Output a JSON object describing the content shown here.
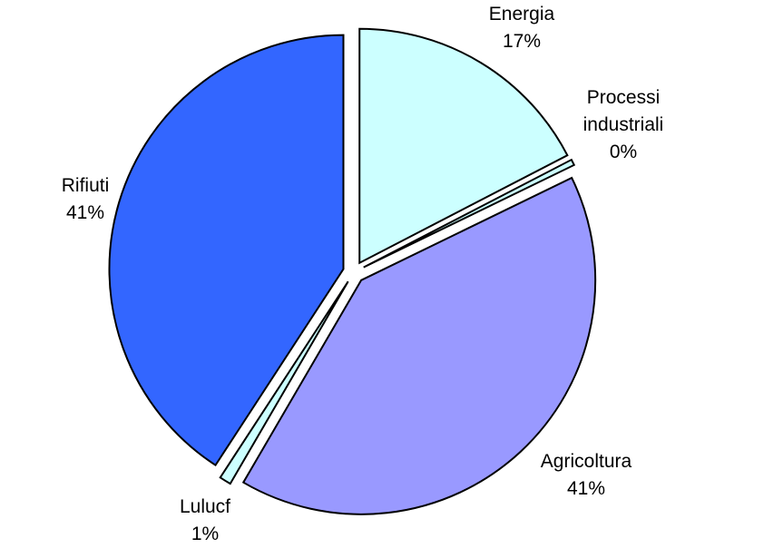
{
  "chart_data": {
    "type": "pie",
    "exploded": true,
    "start_direction": "top",
    "direction": "clockwise",
    "slices": [
      {
        "name": "Energia",
        "label_lines": [
          "Energia",
          "17%"
        ],
        "value": 17.4,
        "color": "#CCFFFF"
      },
      {
        "name": "Processi industriali",
        "label_lines": [
          "Processi",
          "industriali",
          "0%"
        ],
        "value": 0.4,
        "color": "#CCFFFF"
      },
      {
        "name": "Agricoltura",
        "label_lines": [
          "Agricoltura",
          "41%"
        ],
        "value": 40.6,
        "color": "#9999FF"
      },
      {
        "name": "Lulucf",
        "label_lines": [
          "Lulucf",
          "1%"
        ],
        "value": 0.8,
        "color": "#CCFFFF"
      },
      {
        "name": "Rifiuti",
        "label_lines": [
          "Rifiuti",
          "41%"
        ],
        "value": 40.8,
        "color": "#3366FF"
      }
    ]
  }
}
